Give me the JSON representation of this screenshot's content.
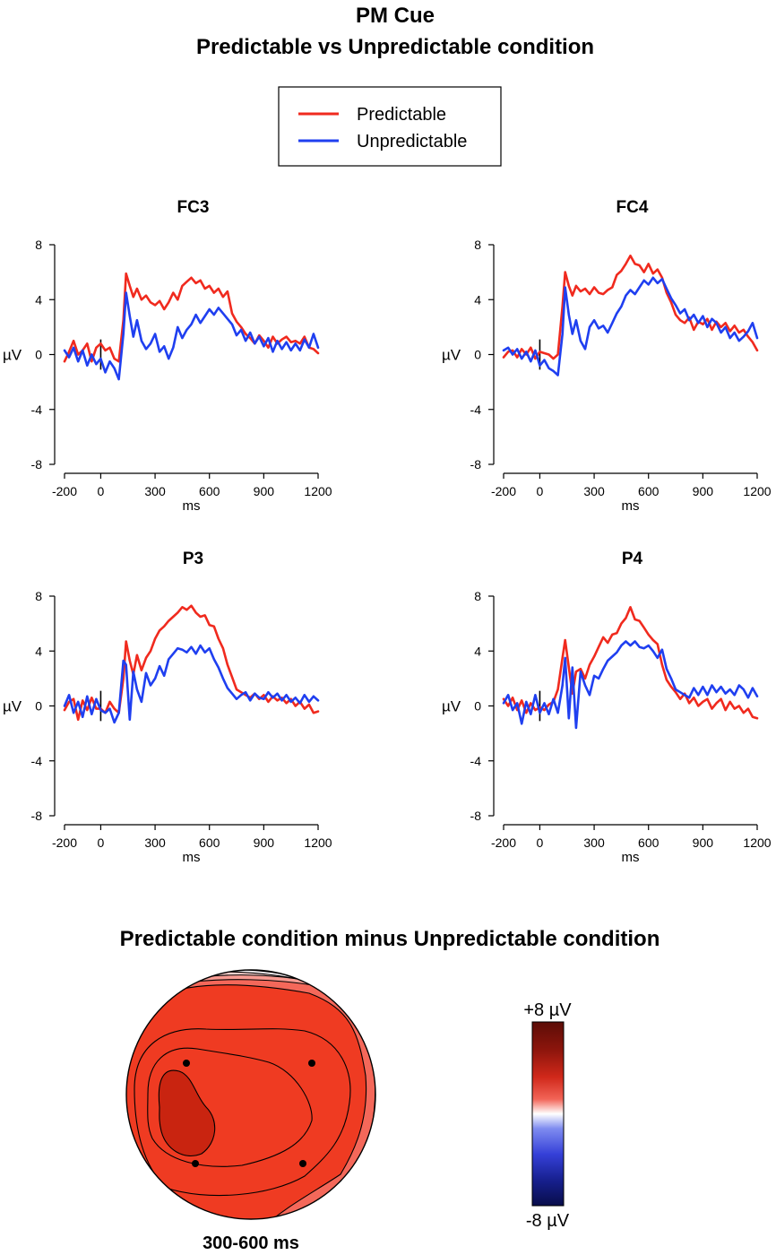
{
  "title": {
    "line1": "PM Cue",
    "line2": "Predictable vs Unpredictable condition"
  },
  "legend": [
    {
      "label": "Predictable",
      "color": "#f02a1e"
    },
    {
      "label": "Unpredictable",
      "color": "#1f3ff0"
    }
  ],
  "chart_data": [
    {
      "type": "line",
      "title": "FC3",
      "xlabel": "ms",
      "ylabel": "µV",
      "xlim": [
        -200,
        1200
      ],
      "ylim": [
        -8,
        8
      ],
      "xticks": [
        -200,
        0,
        300,
        600,
        900,
        1200
      ],
      "yticks": [
        8,
        4,
        0,
        -4,
        -8
      ],
      "series": [
        {
          "name": "Predictable",
          "color": "#f02a1e",
          "x": [
            -200,
            -175,
            -150,
            -125,
            -100,
            -75,
            -50,
            -25,
            0,
            25,
            50,
            75,
            100,
            125,
            140,
            160,
            180,
            200,
            225,
            250,
            275,
            300,
            325,
            350,
            375,
            400,
            425,
            450,
            475,
            500,
            525,
            550,
            575,
            600,
            625,
            650,
            675,
            700,
            725,
            750,
            775,
            800,
            825,
            850,
            875,
            900,
            925,
            950,
            975,
            1000,
            1025,
            1050,
            1075,
            1100,
            1125,
            1150,
            1175,
            1200
          ],
          "values": [
            -0.5,
            0.2,
            1.0,
            0.0,
            0.3,
            0.8,
            -0.5,
            0.5,
            0.8,
            0.3,
            0.5,
            -0.3,
            -0.5,
            2.5,
            5.9,
            5.0,
            4.2,
            4.8,
            4.0,
            4.3,
            3.8,
            3.6,
            3.9,
            3.3,
            3.8,
            4.5,
            4.0,
            5.0,
            5.3,
            5.6,
            5.2,
            5.4,
            4.8,
            5.0,
            4.5,
            4.8,
            4.2,
            4.6,
            3.0,
            2.4,
            2.0,
            1.5,
            1.2,
            0.8,
            1.4,
            1.0,
            0.5,
            1.3,
            0.8,
            1.1,
            1.3,
            0.9,
            1.0,
            0.8,
            1.3,
            0.5,
            0.4,
            0.1
          ]
        },
        {
          "name": "Unpredictable",
          "color": "#1f3ff0",
          "x": [
            -200,
            -175,
            -150,
            -125,
            -100,
            -75,
            -50,
            -25,
            0,
            25,
            50,
            75,
            100,
            125,
            140,
            160,
            180,
            200,
            225,
            250,
            275,
            300,
            325,
            350,
            375,
            400,
            425,
            450,
            475,
            500,
            525,
            550,
            575,
            600,
            625,
            650,
            675,
            700,
            725,
            750,
            775,
            800,
            825,
            850,
            875,
            900,
            925,
            950,
            975,
            1000,
            1025,
            1050,
            1075,
            1100,
            1125,
            1150,
            1175,
            1200
          ],
          "values": [
            0.3,
            -0.2,
            0.5,
            -0.5,
            0.3,
            -0.8,
            0.0,
            -0.7,
            -0.3,
            -1.3,
            -0.5,
            -1.0,
            -1.8,
            1.5,
            4.5,
            2.8,
            1.3,
            2.5,
            1.0,
            0.4,
            0.8,
            1.5,
            0.2,
            0.6,
            -0.3,
            0.5,
            2.0,
            1.2,
            1.8,
            2.2,
            2.9,
            2.3,
            2.8,
            3.3,
            2.9,
            3.4,
            3.0,
            2.6,
            2.2,
            1.4,
            1.8,
            1.0,
            1.6,
            0.8,
            1.3,
            0.6,
            1.2,
            0.2,
            1.0,
            0.4,
            0.9,
            0.3,
            0.8,
            0.3,
            1.1,
            0.5,
            1.5,
            0.5
          ]
        }
      ]
    },
    {
      "type": "line",
      "title": "FC4",
      "xlabel": "ms",
      "ylabel": "µV",
      "xlim": [
        -200,
        1200
      ],
      "ylim": [
        -8,
        8
      ],
      "xticks": [
        -200,
        0,
        300,
        600,
        900,
        1200
      ],
      "yticks": [
        8,
        4,
        0,
        -4,
        -8
      ],
      "series": [
        {
          "name": "Predictable",
          "color": "#f02a1e",
          "x": [
            -200,
            -175,
            -150,
            -125,
            -100,
            -75,
            -50,
            -25,
            0,
            25,
            50,
            75,
            100,
            125,
            140,
            160,
            180,
            200,
            225,
            250,
            275,
            300,
            325,
            350,
            375,
            400,
            425,
            450,
            475,
            500,
            525,
            550,
            575,
            600,
            625,
            650,
            675,
            700,
            725,
            750,
            775,
            800,
            825,
            850,
            875,
            900,
            925,
            950,
            975,
            1000,
            1025,
            1050,
            1075,
            1100,
            1125,
            1150,
            1175,
            1200
          ],
          "values": [
            -0.2,
            0.2,
            0.3,
            -0.2,
            0.4,
            0.0,
            0.5,
            -0.3,
            0.2,
            0.1,
            0.0,
            -0.3,
            0.0,
            3.5,
            6.0,
            5.0,
            4.3,
            5.0,
            4.6,
            4.8,
            4.4,
            4.9,
            4.5,
            4.4,
            4.7,
            4.9,
            5.8,
            6.1,
            6.6,
            7.2,
            6.6,
            6.5,
            6.0,
            6.6,
            5.9,
            6.2,
            5.6,
            4.5,
            3.8,
            2.9,
            2.5,
            2.3,
            2.7,
            1.8,
            2.4,
            2.2,
            2.6,
            1.8,
            2.4,
            2.0,
            2.3,
            1.7,
            2.1,
            1.6,
            1.8,
            1.3,
            0.9,
            0.3
          ]
        },
        {
          "name": "Unpredictable",
          "color": "#1f3ff0",
          "x": [
            -200,
            -175,
            -150,
            -125,
            -100,
            -75,
            -50,
            -25,
            0,
            25,
            50,
            75,
            100,
            125,
            140,
            160,
            180,
            200,
            225,
            250,
            275,
            300,
            325,
            350,
            375,
            400,
            425,
            450,
            475,
            500,
            525,
            550,
            575,
            600,
            625,
            650,
            675,
            700,
            725,
            750,
            775,
            800,
            825,
            850,
            875,
            900,
            925,
            950,
            975,
            1000,
            1025,
            1050,
            1075,
            1100,
            1125,
            1150,
            1175,
            1200
          ],
          "values": [
            0.3,
            0.5,
            0.0,
            0.4,
            -0.3,
            0.2,
            -0.5,
            0.3,
            -0.8,
            -0.4,
            -1.0,
            -1.2,
            -1.5,
            1.5,
            4.9,
            2.9,
            1.5,
            2.5,
            1.0,
            0.4,
            2.0,
            2.5,
            1.9,
            2.1,
            1.6,
            2.3,
            3.0,
            3.5,
            4.3,
            4.7,
            4.4,
            4.9,
            5.4,
            5.1,
            5.6,
            5.2,
            5.5,
            4.8,
            4.1,
            3.6,
            3.0,
            3.3,
            2.5,
            2.9,
            2.3,
            2.8,
            2.0,
            2.6,
            2.3,
            1.6,
            2.0,
            1.2,
            1.6,
            1.0,
            1.3,
            1.7,
            2.3,
            1.2
          ]
        }
      ]
    },
    {
      "type": "line",
      "title": "P3",
      "xlabel": "ms",
      "ylabel": "µV",
      "xlim": [
        -200,
        1200
      ],
      "ylim": [
        -8,
        8
      ],
      "xticks": [
        -200,
        0,
        300,
        600,
        900,
        1200
      ],
      "yticks": [
        8,
        4,
        0,
        -4,
        -8
      ],
      "series": [
        {
          "name": "Predictable",
          "color": "#f02a1e",
          "x": [
            -200,
            -175,
            -150,
            -125,
            -100,
            -75,
            -50,
            -25,
            0,
            25,
            50,
            75,
            100,
            125,
            140,
            160,
            180,
            200,
            225,
            250,
            275,
            300,
            325,
            350,
            375,
            400,
            425,
            450,
            475,
            500,
            525,
            550,
            575,
            600,
            625,
            650,
            675,
            700,
            725,
            750,
            775,
            800,
            825,
            850,
            875,
            900,
            925,
            950,
            975,
            1000,
            1025,
            1050,
            1075,
            1100,
            1125,
            1150,
            1175,
            1200
          ],
          "values": [
            -0.3,
            0.3,
            0.5,
            -1.0,
            0.4,
            -0.3,
            0.6,
            -0.2,
            -0.2,
            -0.5,
            0.3,
            -0.2,
            -0.5,
            2.0,
            4.7,
            3.3,
            2.3,
            3.7,
            2.6,
            3.5,
            4.0,
            4.9,
            5.5,
            5.8,
            6.2,
            6.5,
            6.8,
            7.2,
            7.0,
            7.3,
            6.8,
            6.5,
            6.6,
            5.9,
            5.8,
            4.9,
            4.2,
            3.0,
            2.1,
            1.2,
            1.0,
            0.8,
            0.6,
            0.9,
            0.5,
            0.8,
            0.3,
            0.7,
            0.4,
            0.6,
            0.2,
            0.5,
            0.0,
            0.3,
            -0.2,
            0.1,
            -0.5,
            -0.4
          ]
        },
        {
          "name": "Unpredictable",
          "color": "#1f3ff0",
          "x": [
            -200,
            -175,
            -150,
            -125,
            -100,
            -75,
            -50,
            -25,
            0,
            25,
            50,
            75,
            100,
            125,
            140,
            160,
            180,
            200,
            225,
            250,
            275,
            300,
            325,
            350,
            375,
            400,
            425,
            450,
            475,
            500,
            525,
            550,
            575,
            600,
            625,
            650,
            675,
            700,
            725,
            750,
            775,
            800,
            825,
            850,
            875,
            900,
            925,
            950,
            975,
            1000,
            1025,
            1050,
            1075,
            1100,
            1125,
            1150,
            1175,
            1200
          ],
          "values": [
            0.0,
            0.8,
            -0.5,
            0.3,
            -0.8,
            0.7,
            -0.6,
            0.5,
            -0.3,
            -0.5,
            -0.2,
            -1.2,
            -0.5,
            3.3,
            3.0,
            -1.0,
            2.5,
            1.2,
            0.3,
            2.4,
            1.5,
            2.0,
            2.9,
            2.2,
            3.4,
            3.8,
            4.2,
            4.1,
            3.9,
            4.3,
            3.8,
            4.4,
            3.9,
            4.2,
            3.4,
            2.8,
            2.0,
            1.3,
            0.9,
            0.5,
            0.8,
            1.0,
            0.4,
            0.9,
            0.6,
            0.5,
            1.0,
            0.6,
            0.9,
            0.4,
            0.8,
            0.3,
            0.6,
            0.2,
            0.8,
            0.3,
            0.7,
            0.4
          ]
        }
      ]
    },
    {
      "type": "line",
      "title": "P4",
      "xlabel": "ms",
      "ylabel": "µV",
      "xlim": [
        -200,
        1200
      ],
      "ylim": [
        -8,
        8
      ],
      "xticks": [
        -200,
        0,
        300,
        600,
        900,
        1200
      ],
      "yticks": [
        8,
        4,
        0,
        -4,
        -8
      ],
      "series": [
        {
          "name": "Predictable",
          "color": "#f02a1e",
          "x": [
            -200,
            -175,
            -150,
            -125,
            -100,
            -75,
            -50,
            -25,
            0,
            25,
            50,
            75,
            100,
            125,
            140,
            160,
            180,
            200,
            225,
            250,
            275,
            300,
            325,
            350,
            375,
            400,
            425,
            450,
            475,
            500,
            525,
            550,
            575,
            600,
            625,
            650,
            675,
            700,
            725,
            750,
            775,
            800,
            825,
            850,
            875,
            900,
            925,
            950,
            975,
            1000,
            1025,
            1050,
            1075,
            1100,
            1125,
            1150,
            1175,
            1200
          ],
          "values": [
            0.5,
            0.0,
            0.6,
            -0.3,
            0.4,
            -0.5,
            0.2,
            -0.3,
            -0.1,
            -0.3,
            0.1,
            0.3,
            1.2,
            3.5,
            4.8,
            2.8,
            0.9,
            2.5,
            2.7,
            2.0,
            3.0,
            3.6,
            4.3,
            5.0,
            4.6,
            5.2,
            5.3,
            6.0,
            6.4,
            7.2,
            6.3,
            6.2,
            5.7,
            5.2,
            4.8,
            4.5,
            3.0,
            1.9,
            1.4,
            1.0,
            0.5,
            0.9,
            0.2,
            0.6,
            0.0,
            0.3,
            0.5,
            -0.2,
            0.2,
            0.5,
            -0.3,
            0.3,
            -0.2,
            0.0,
            -0.5,
            -0.2,
            -0.8,
            -0.9
          ]
        },
        {
          "name": "Unpredictable",
          "color": "#1f3ff0",
          "x": [
            -200,
            -175,
            -150,
            -125,
            -100,
            -75,
            -50,
            -25,
            0,
            25,
            50,
            75,
            100,
            125,
            140,
            160,
            180,
            200,
            225,
            250,
            275,
            300,
            325,
            350,
            375,
            400,
            425,
            450,
            475,
            500,
            525,
            550,
            575,
            600,
            625,
            650,
            675,
            700,
            725,
            750,
            775,
            800,
            825,
            850,
            875,
            900,
            925,
            950,
            975,
            1000,
            1025,
            1050,
            1075,
            1100,
            1125,
            1150,
            1175,
            1200
          ],
          "values": [
            0.2,
            0.8,
            -0.3,
            0.2,
            -1.3,
            0.3,
            -0.6,
            0.8,
            -0.5,
            0.2,
            -0.6,
            0.5,
            -0.5,
            1.5,
            3.5,
            -0.9,
            2.8,
            -1.6,
            2.5,
            1.5,
            0.8,
            2.2,
            2.0,
            2.7,
            3.3,
            3.6,
            3.9,
            4.4,
            4.7,
            4.4,
            4.7,
            4.3,
            4.2,
            4.4,
            4.0,
            3.5,
            4.1,
            2.7,
            2.0,
            1.2,
            1.0,
            0.8,
            0.6,
            1.3,
            0.8,
            1.4,
            0.8,
            1.5,
            1.0,
            1.4,
            0.9,
            1.2,
            0.8,
            1.5,
            1.2,
            0.6,
            1.3,
            0.7
          ]
        }
      ]
    },
    {
      "type": "heatmap",
      "title": "Predictable condition minus Unpredictable condition",
      "subtitle": "300-600 ms",
      "colorbar": {
        "max_label": "+8 µV",
        "min_label": "-8 µV",
        "range": [
          -8,
          8
        ]
      },
      "electrodes": [
        "FC3",
        "FC4",
        "P3",
        "P4"
      ],
      "note": "scalp topography map; estimated amplitude levels",
      "levels": [
        -1,
        0.5,
        2,
        3.5,
        5,
        6.5
      ]
    }
  ]
}
